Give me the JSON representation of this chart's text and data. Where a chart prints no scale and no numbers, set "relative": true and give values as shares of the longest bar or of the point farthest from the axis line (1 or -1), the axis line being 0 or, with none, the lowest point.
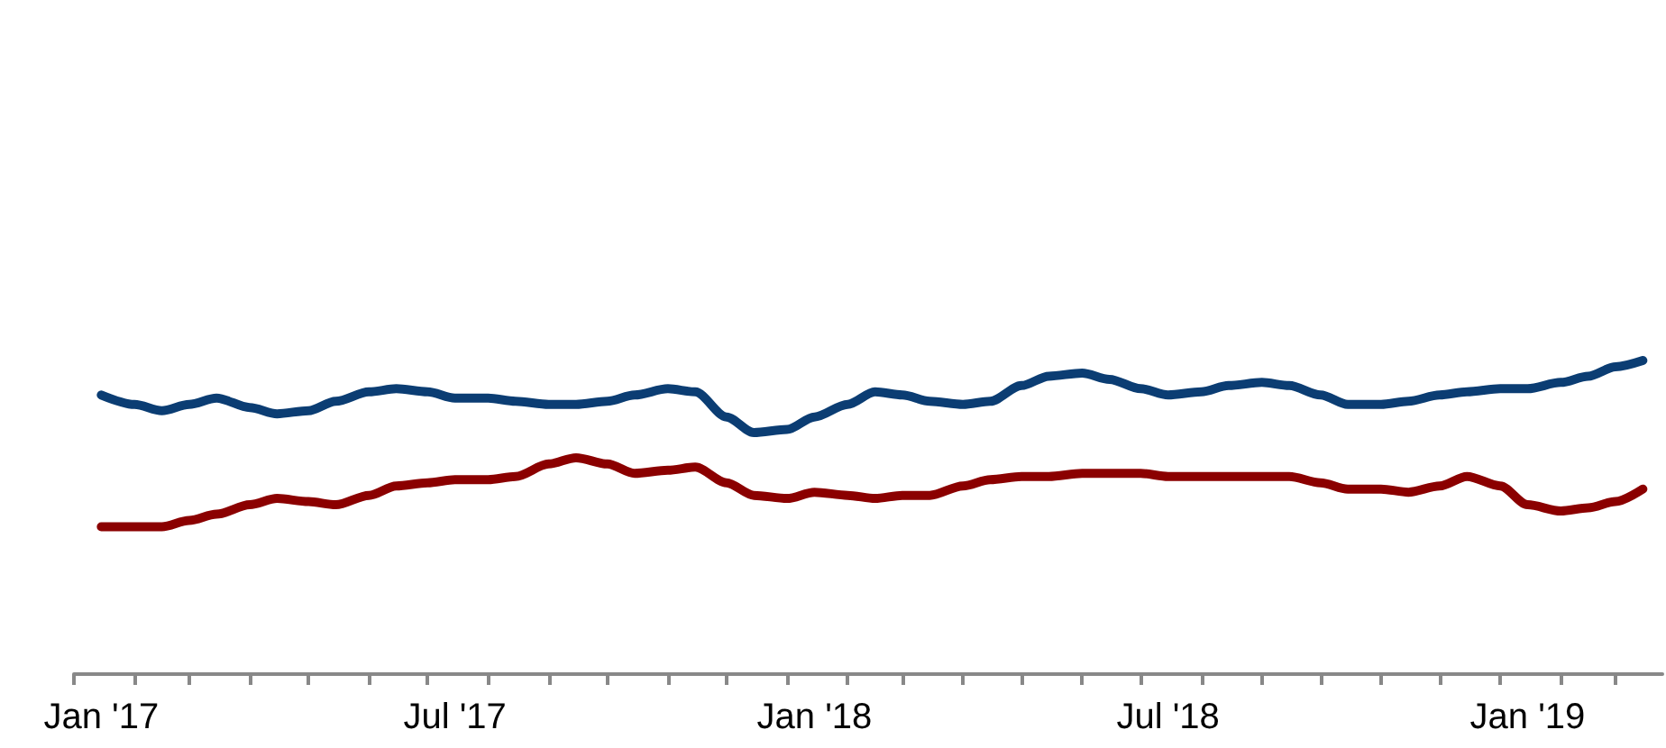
{
  "chart_data": {
    "type": "line",
    "relative": true,
    "grid": false,
    "marker": "none",
    "line_style": "solid",
    "x": [
      "2017-01-15",
      "2017-02-01",
      "2017-02-15",
      "2017-03-01",
      "2017-03-15",
      "2017-04-01",
      "2017-04-15",
      "2017-05-01",
      "2017-05-15",
      "2017-06-01",
      "2017-06-15",
      "2017-07-01",
      "2017-07-15",
      "2017-08-01",
      "2017-08-15",
      "2017-09-01",
      "2017-09-15",
      "2017-10-01",
      "2017-10-15",
      "2017-11-01",
      "2017-11-15",
      "2017-12-01",
      "2017-12-15",
      "2018-01-01",
      "2018-01-15",
      "2018-02-01",
      "2018-02-15",
      "2018-03-01",
      "2018-03-15",
      "2018-04-01",
      "2018-04-15",
      "2018-05-01",
      "2018-05-15",
      "2018-06-01",
      "2018-06-15",
      "2018-07-01",
      "2018-07-15",
      "2018-08-01",
      "2018-08-15",
      "2018-09-01",
      "2018-09-15",
      "2018-10-01",
      "2018-10-15",
      "2018-11-01",
      "2018-11-15",
      "2018-12-01",
      "2018-12-15",
      "2019-01-01",
      "2019-01-15",
      "2019-02-01",
      "2019-02-15",
      "2019-03-01",
      "2019-03-15"
    ],
    "xlim": [
      "2017-01-01",
      "2019-03-25"
    ],
    "xticks": [
      {
        "value": "2017-01-01",
        "label": null
      },
      {
        "value": "2017-01-15",
        "label": "Jan '17"
      },
      {
        "value": "2017-02-01",
        "label": null
      },
      {
        "value": "2017-03-01",
        "label": null
      },
      {
        "value": "2017-04-01",
        "label": null
      },
      {
        "value": "2017-05-01",
        "label": null
      },
      {
        "value": "2017-06-01",
        "label": null
      },
      {
        "value": "2017-07-01",
        "label": null
      },
      {
        "value": "2017-07-15",
        "label": "Jul '17"
      },
      {
        "value": "2017-08-01",
        "label": null
      },
      {
        "value": "2017-09-01",
        "label": null
      },
      {
        "value": "2017-10-01",
        "label": null
      },
      {
        "value": "2017-11-01",
        "label": null
      },
      {
        "value": "2017-12-01",
        "label": null
      },
      {
        "value": "2018-01-01",
        "label": null
      },
      {
        "value": "2018-01-15",
        "label": "Jan '18"
      },
      {
        "value": "2018-02-01",
        "label": null
      },
      {
        "value": "2018-03-01",
        "label": null
      },
      {
        "value": "2018-04-01",
        "label": null
      },
      {
        "value": "2018-05-01",
        "label": null
      },
      {
        "value": "2018-06-01",
        "label": null
      },
      {
        "value": "2018-07-01",
        "label": null
      },
      {
        "value": "2018-07-15",
        "label": "Jul '18"
      },
      {
        "value": "2018-08-01",
        "label": null
      },
      {
        "value": "2018-09-01",
        "label": null
      },
      {
        "value": "2018-10-01",
        "label": null
      },
      {
        "value": "2018-11-01",
        "label": null
      },
      {
        "value": "2018-12-01",
        "label": null
      },
      {
        "value": "2019-01-01",
        "label": null
      },
      {
        "value": "2019-01-15",
        "label": "Jan '19"
      },
      {
        "value": "2019-02-01",
        "label": null
      },
      {
        "value": "2019-03-01",
        "label": null
      }
    ],
    "series": [
      {
        "color": "#0b3d73",
        "values": [
          0.89,
          0.86,
          0.84,
          0.86,
          0.88,
          0.85,
          0.83,
          0.84,
          0.87,
          0.9,
          0.91,
          0.9,
          0.88,
          0.88,
          0.87,
          0.86,
          0.86,
          0.87,
          0.89,
          0.91,
          0.9,
          0.82,
          0.77,
          0.78,
          0.82,
          0.86,
          0.9,
          0.89,
          0.87,
          0.86,
          0.87,
          0.92,
          0.95,
          0.96,
          0.94,
          0.91,
          0.89,
          0.9,
          0.92,
          0.93,
          0.92,
          0.89,
          0.86,
          0.86,
          0.87,
          0.89,
          0.9,
          0.91,
          0.91,
          0.93,
          0.95,
          0.98,
          1
        ]
      },
      {
        "color": "#8b0000",
        "values": [
          0.47,
          0.47,
          0.47,
          0.49,
          0.51,
          0.54,
          0.56,
          0.55,
          0.54,
          0.57,
          0.6,
          0.61,
          0.62,
          0.62,
          0.63,
          0.67,
          0.69,
          0.67,
          0.64,
          0.65,
          0.66,
          0.61,
          0.57,
          0.56,
          0.58,
          0.57,
          0.56,
          0.57,
          0.57,
          0.6,
          0.62,
          0.63,
          0.63,
          0.64,
          0.64,
          0.64,
          0.63,
          0.63,
          0.63,
          0.63,
          0.63,
          0.61,
          0.59,
          0.59,
          0.58,
          0.6,
          0.63,
          0.6,
          0.54,
          0.52,
          0.53,
          0.55,
          0.59
        ]
      }
    ]
  }
}
